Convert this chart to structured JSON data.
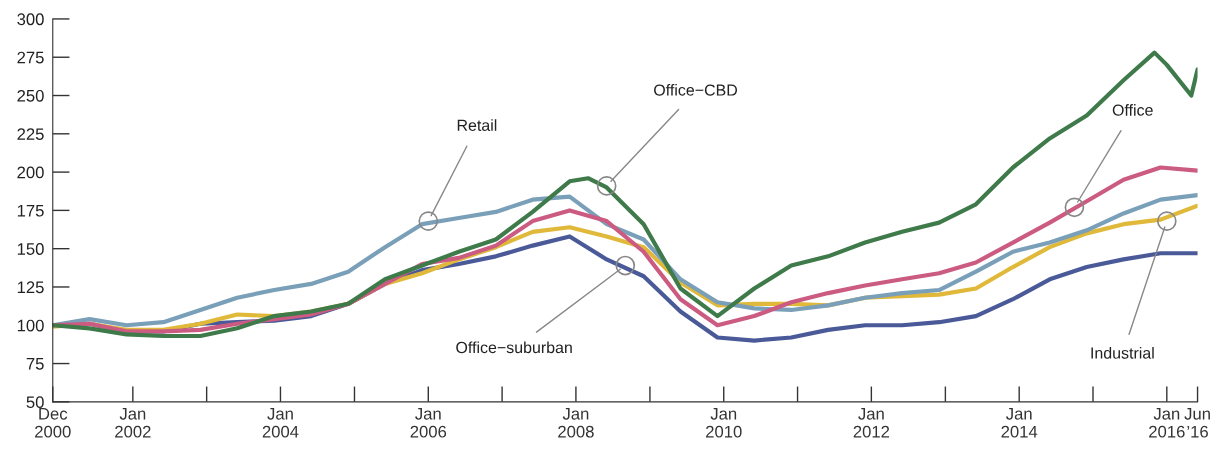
{
  "chart_data": {
    "type": "line",
    "x": [
      "2000-12",
      "2001-06",
      "2001-12",
      "2002-06",
      "2002-12",
      "2003-06",
      "2003-12",
      "2004-06",
      "2004-12",
      "2005-06",
      "2005-12",
      "2006-06",
      "2006-12",
      "2007-06",
      "2007-12",
      "2008-06",
      "2008-12",
      "2009-06",
      "2009-12",
      "2010-06",
      "2010-12",
      "2011-06",
      "2011-12",
      "2012-06",
      "2012-12",
      "2013-06",
      "2013-12",
      "2014-06",
      "2014-12",
      "2015-06",
      "2015-12",
      "2016-06"
    ],
    "series": [
      {
        "color": "#4a5a98",
        "values": [
          100,
          101,
          96,
          96,
          101,
          102,
          103,
          106,
          114,
          127,
          136,
          140,
          145,
          152,
          158,
          143,
          132,
          109,
          92,
          90,
          92,
          97,
          100,
          100,
          102,
          106,
          117,
          130,
          138,
          143,
          147,
          147
        ]
      },
      {
        "color": "#e0b93a",
        "values": [
          99,
          101,
          97,
          97,
          101,
          107,
          106,
          109,
          114,
          127,
          134,
          143,
          151,
          161,
          164,
          158,
          151,
          128,
          113,
          114,
          114,
          113,
          118,
          119,
          120,
          124,
          138,
          151,
          160,
          166,
          169,
          178
        ]
      },
      {
        "color": "#7a9fb8",
        "values": [
          100,
          104,
          100,
          102,
          110,
          118,
          123,
          127,
          135,
          151,
          166,
          170,
          174,
          182,
          184,
          166,
          156,
          130,
          115,
          111,
          110,
          113,
          118,
          121,
          123,
          135,
          148,
          154,
          162,
          173,
          182,
          185
        ]
      },
      {
        "color": "#cc5b82",
        "values": [
          100,
          101,
          96,
          96,
          97,
          101,
          104,
          107,
          114,
          127,
          140,
          144,
          152,
          168,
          175,
          168,
          148,
          117,
          100,
          106,
          115,
          121,
          126,
          130,
          134,
          141,
          154,
          167,
          181,
          195,
          203,
          201
        ]
      },
      {
        "color": "#3f7a4a",
        "x": [
          "2000-12",
          "2001-06",
          "2001-12",
          "2002-06",
          "2002-12",
          "2003-06",
          "2003-12",
          "2004-06",
          "2004-12",
          "2005-06",
          "2005-12",
          "2006-06",
          "2006-12",
          "2007-06",
          "2007-12",
          "2008-03",
          "2008-06",
          "2008-12",
          "2009-06",
          "2009-12",
          "2010-06",
          "2010-12",
          "2011-06",
          "2011-12",
          "2012-06",
          "2012-12",
          "2013-06",
          "2013-12",
          "2014-06",
          "2014-12",
          "2015-06",
          "2015-11",
          "2016-01",
          "2016-05",
          "2016-06"
        ],
        "values": [
          100,
          98,
          94,
          93,
          93,
          98,
          106,
          109,
          114,
          130,
          139,
          148,
          156,
          174,
          194,
          196,
          190,
          166,
          124,
          106,
          124,
          139,
          145,
          154,
          161,
          167,
          179,
          203,
          222,
          237,
          260,
          278,
          270,
          250,
          267
        ]
      }
    ],
    "annotations": [
      {
        "text": "Retail",
        "x": "2006-01",
        "y": 168
      },
      {
        "text": "Office−CBD",
        "x": "2008-06",
        "y": 191
      },
      {
        "text": "Office−suburban",
        "x": "2008-09",
        "y": 139
      },
      {
        "text": "Office",
        "x": "2014-10",
        "y": 177
      },
      {
        "text": "Industrial",
        "x": "2016-01",
        "y": 168
      }
    ],
    "xlim": [
      "2000-12",
      "2016-06"
    ],
    "xticks": [
      {
        "value": "2000-12",
        "label": "Dec\n2000"
      },
      {
        "value": "2002-01",
        "label": "Jan\n2002"
      },
      {
        "value": "2003-01",
        "label": null
      },
      {
        "value": "2004-01",
        "label": "Jan\n2004"
      },
      {
        "value": "2005-01",
        "label": null
      },
      {
        "value": "2006-01",
        "label": "Jan\n2006"
      },
      {
        "value": "2007-01",
        "label": null
      },
      {
        "value": "2008-01",
        "label": "Jan\n2008"
      },
      {
        "value": "2009-01",
        "label": null
      },
      {
        "value": "2010-01",
        "label": "Jan\n2010"
      },
      {
        "value": "2011-01",
        "label": null
      },
      {
        "value": "2012-01",
        "label": "Jan\n2012"
      },
      {
        "value": "2013-01",
        "label": null
      },
      {
        "value": "2014-01",
        "label": "Jan\n2014"
      },
      {
        "value": "2015-01",
        "label": null
      },
      {
        "value": "2016-01",
        "label": "Jan\n2016"
      },
      {
        "value": "2016-06",
        "label": "Jun\n’16"
      }
    ],
    "ylim": [
      50,
      300
    ],
    "yticks": [
      50,
      75,
      100,
      125,
      150,
      175,
      200,
      225,
      250,
      275,
      300
    ],
    "grid": false,
    "legend": false,
    "marker": "none",
    "line_style": "solid"
  }
}
